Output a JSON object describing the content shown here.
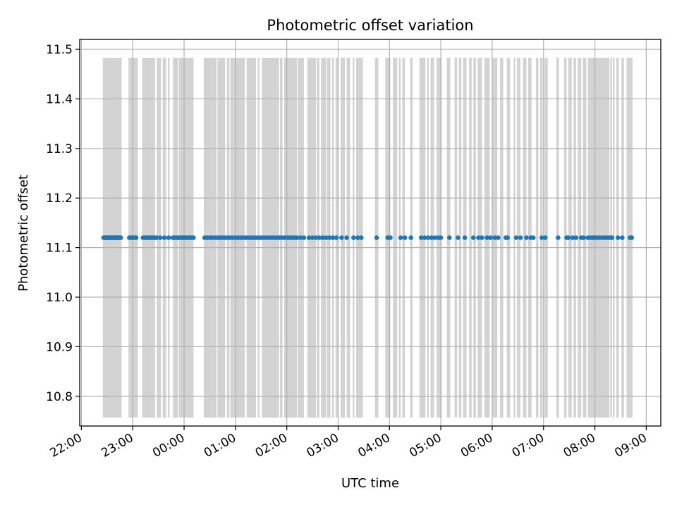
{
  "chart_data": {
    "type": "scatter",
    "title": "Photometric offset variation",
    "xlabel": "UTC time",
    "ylabel": "Photometric offset",
    "x_unit": "UTC time (HH:MM), night spanning midnight",
    "xlim": [
      "21:58",
      "09:17"
    ],
    "ylim": [
      10.74,
      11.52
    ],
    "x_ticks": [
      "22:00",
      "23:00",
      "00:00",
      "01:00",
      "02:00",
      "03:00",
      "04:00",
      "05:00",
      "06:00",
      "07:00",
      "08:00",
      "09:00"
    ],
    "y_ticks": [
      "10.8",
      "10.9",
      "11.0",
      "11.1",
      "11.2",
      "11.3",
      "11.4",
      "11.5"
    ],
    "grid": true,
    "series": [
      {
        "values": 11.12,
        "color": "#1f77b4",
        "x": [
          "22:26",
          "22:27",
          "22:28",
          "22:29",
          "22:30",
          "22:31",
          "22:32",
          "22:33",
          "22:34",
          "22:35",
          "22:36",
          "22:37",
          "22:38",
          "22:39",
          "22:40",
          "22:41",
          "22:42",
          "22:43",
          "22:44",
          "22:45",
          "22:46",
          "22:56",
          "22:58",
          "23:00",
          "23:02",
          "23:04",
          "23:12",
          "23:14",
          "23:16",
          "23:18",
          "23:20",
          "23:22",
          "23:24",
          "23:26",
          "23:28",
          "23:32",
          "23:37",
          "23:42",
          "23:47",
          "23:49",
          "23:51",
          "23:53",
          "23:55",
          "23:57",
          "23:59",
          "00:01",
          "00:03",
          "00:05",
          "00:07",
          "00:09",
          "00:11",
          "00:24",
          "00:27",
          "00:30",
          "00:33",
          "00:36",
          "00:39",
          "00:42",
          "00:45",
          "00:48",
          "00:51",
          "00:54",
          "00:57",
          "01:00",
          "01:03",
          "01:06",
          "01:09",
          "01:12",
          "01:15",
          "01:18",
          "01:21",
          "01:24",
          "01:27",
          "01:30",
          "01:33",
          "01:36",
          "01:39",
          "01:42",
          "01:45",
          "01:48",
          "01:51",
          "01:54",
          "01:57",
          "02:00",
          "02:03",
          "02:06",
          "02:09",
          "02:12",
          "02:16",
          "02:20",
          "02:26",
          "02:30",
          "02:34",
          "02:38",
          "02:42",
          "02:46",
          "02:50",
          "02:54",
          "02:58",
          "03:04",
          "03:10",
          "03:18",
          "03:23",
          "03:27",
          "03:45",
          "03:58",
          "04:01",
          "04:13",
          "04:18",
          "04:25",
          "04:37",
          "04:41",
          "04:45",
          "04:49",
          "04:53",
          "04:57",
          "05:00",
          "05:10",
          "05:20",
          "05:28",
          "05:38",
          "05:44",
          "05:48",
          "05:54",
          "05:58",
          "06:03",
          "06:07",
          "06:16",
          "06:18",
          "06:28",
          "06:33",
          "06:40",
          "06:45",
          "06:48",
          "06:58",
          "07:02",
          "07:17",
          "07:27",
          "07:29",
          "07:34",
          "07:38",
          "07:44",
          "07:47",
          "07:52",
          "07:55",
          "07:58",
          "08:00",
          "08:02",
          "08:05",
          "08:08",
          "08:11",
          "08:14",
          "08:17",
          "08:20",
          "08:27",
          "08:32",
          "08:41",
          "08:43"
        ]
      }
    ],
    "background_bands": {
      "color": "#d3d3d3",
      "y_range": [
        10.757,
        11.483
      ],
      "intervals": [
        [
          "22:25",
          "22:47"
        ],
        [
          "22:55",
          "23:06"
        ],
        [
          "23:11",
          "23:26"
        ],
        [
          "23:28",
          "23:33"
        ],
        [
          "23:35",
          "23:39"
        ],
        [
          "23:41",
          "23:43"
        ],
        [
          "23:47",
          "23:53"
        ],
        [
          "23:54",
          "00:11"
        ],
        [
          "00:23",
          "00:38"
        ],
        [
          "00:39",
          "00:48"
        ],
        [
          "00:50",
          "00:53"
        ],
        [
          "00:54",
          "01:11"
        ],
        [
          "01:13",
          "01:24"
        ],
        [
          "01:26",
          "01:28"
        ],
        [
          "01:31",
          "01:51"
        ],
        [
          "01:52",
          "01:55"
        ],
        [
          "01:57",
          "02:12"
        ],
        [
          "02:13",
          "02:20"
        ],
        [
          "02:24",
          "02:34"
        ],
        [
          "02:35",
          "02:38"
        ],
        [
          "02:40",
          "02:46"
        ],
        [
          "02:47",
          "02:51"
        ],
        [
          "02:53",
          "02:55"
        ],
        [
          "02:57",
          "03:00"
        ],
        [
          "03:03",
          "03:08"
        ],
        [
          "03:10",
          "03:14"
        ],
        [
          "03:17",
          "03:19"
        ],
        [
          "03:21",
          "03:29"
        ],
        [
          "03:43",
          "03:47"
        ],
        [
          "03:55",
          "04:01"
        ],
        [
          "04:04",
          "04:09"
        ],
        [
          "04:11",
          "04:13"
        ],
        [
          "04:15",
          "04:18"
        ],
        [
          "04:24",
          "04:27"
        ],
        [
          "04:35",
          "04:42"
        ],
        [
          "04:44",
          "04:46"
        ],
        [
          "04:48",
          "04:52"
        ],
        [
          "04:55",
          "05:01"
        ],
        [
          "05:07",
          "05:11"
        ],
        [
          "05:16",
          "05:19"
        ],
        [
          "05:21",
          "05:24"
        ],
        [
          "05:26",
          "05:30"
        ],
        [
          "05:33",
          "05:36"
        ],
        [
          "05:38",
          "05:41"
        ],
        [
          "05:43",
          "05:48"
        ],
        [
          "05:51",
          "05:57"
        ],
        [
          "06:00",
          "06:06"
        ],
        [
          "06:09",
          "06:13"
        ],
        [
          "06:17",
          "06:21"
        ],
        [
          "06:25",
          "06:27"
        ],
        [
          "06:29",
          "06:33"
        ],
        [
          "06:36",
          "06:40"
        ],
        [
          "06:42",
          "06:46"
        ],
        [
          "06:51",
          "06:54"
        ],
        [
          "06:56",
          "06:59"
        ],
        [
          "07:01",
          "07:05"
        ],
        [
          "07:15",
          "07:18"
        ],
        [
          "07:24",
          "07:27"
        ],
        [
          "07:29",
          "07:33"
        ],
        [
          "07:35",
          "07:38"
        ],
        [
          "07:40",
          "07:44"
        ],
        [
          "07:46",
          "07:50"
        ],
        [
          "07:52",
          "07:59"
        ],
        [
          "07:59",
          "08:17"
        ],
        [
          "08:18",
          "08:20"
        ],
        [
          "08:21",
          "08:23"
        ],
        [
          "08:25",
          "08:28"
        ],
        [
          "08:31",
          "08:34"
        ],
        [
          "08:37",
          "08:42"
        ],
        [
          "08:42",
          "08:44"
        ]
      ]
    }
  }
}
